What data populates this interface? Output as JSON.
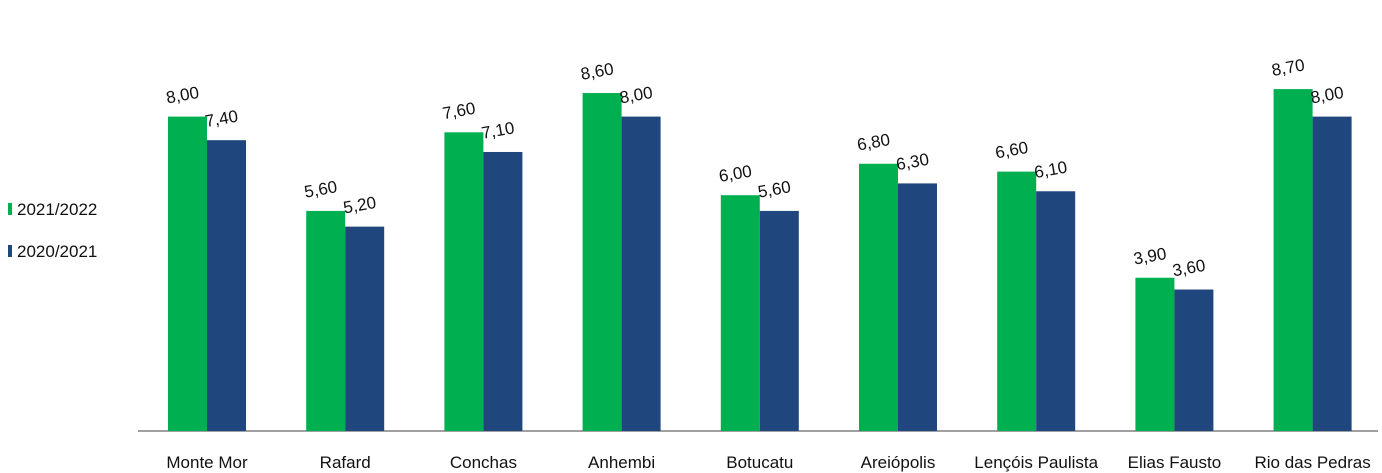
{
  "chart_data": {
    "type": "bar",
    "categories": [
      "Monte Mor",
      "Rafard",
      "Conchas",
      "Anhembi",
      "Botucatu",
      "Areiópolis",
      "Lençóis Paulista",
      "Elias Fausto",
      "Rio das Pedras"
    ],
    "series": [
      {
        "name": "2021/2022",
        "color": "#00b050",
        "values": [
          8.0,
          5.6,
          7.6,
          8.6,
          6.0,
          6.8,
          6.6,
          3.9,
          8.7
        ],
        "labels": [
          "8,00",
          "5,60",
          "7,60",
          "8,60",
          "6,00",
          "6,80",
          "6,60",
          "3,90",
          "8,70"
        ]
      },
      {
        "name": "2020/2021",
        "color": "#1f477d",
        "values": [
          7.4,
          5.2,
          7.1,
          8.0,
          5.6,
          6.3,
          6.1,
          3.6,
          8.0
        ],
        "labels": [
          "7,40",
          "5,20",
          "7,10",
          "8,00",
          "5,60",
          "6,30",
          "6,10",
          "3,60",
          "8,00"
        ]
      }
    ],
    "title": "",
    "xlabel": "",
    "ylabel": "",
    "ylim": [
      0,
      10
    ],
    "grid": false,
    "legend": "left"
  }
}
